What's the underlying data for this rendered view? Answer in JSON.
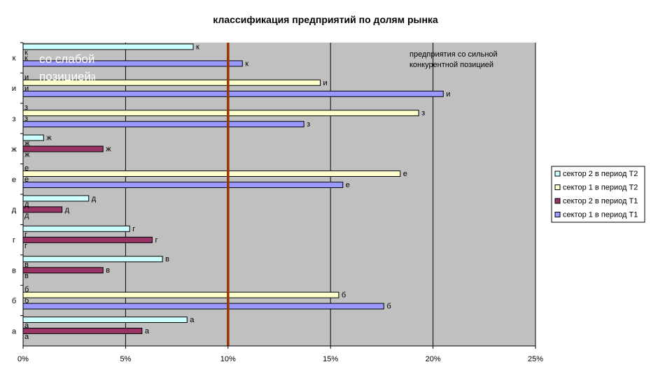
{
  "chart_data": {
    "type": "bar",
    "orientation": "horizontal",
    "title": "классификация предприятий по долям рынка",
    "categories": [
      "а",
      "б",
      "в",
      "г",
      "д",
      "е",
      "ж",
      "з",
      "и",
      "к"
    ],
    "x_ticks": [
      "0%",
      "5%",
      "10%",
      "15%",
      "20%",
      "25%"
    ],
    "xlim": [
      0,
      25
    ],
    "grid": "vertical",
    "legend_position": "right",
    "series": [
      {
        "name": "сектор 2 в период Т2",
        "color": "#CCFFFF",
        "values": [
          8.0,
          null,
          6.8,
          5.2,
          3.2,
          null,
          1.0,
          null,
          null,
          8.3
        ]
      },
      {
        "name": "сектор 1 в период Т2",
        "color": "#FFFFCC",
        "values": [
          null,
          15.4,
          null,
          null,
          null,
          18.4,
          null,
          19.3,
          14.5,
          null
        ]
      },
      {
        "name": "сектор 2 в период Т1",
        "color": "#993366",
        "values": [
          5.8,
          null,
          3.9,
          6.3,
          1.9,
          null,
          3.9,
          null,
          null,
          null
        ]
      },
      {
        "name": "сектор 1 в период Т1",
        "color": "#9999FF",
        "values": [
          null,
          17.6,
          null,
          null,
          null,
          15.6,
          null,
          13.7,
          20.5,
          10.7
        ]
      }
    ],
    "reference_line": {
      "value": 10,
      "color": "#993300"
    },
    "annotations": {
      "strong": [
        "предприятия со сильной",
        "конкурентной позицией"
      ],
      "weak": [
        "со слабой",
        "позицией"
      ],
      "weak_tail": "й"
    },
    "plot_color": "#C0C0C0"
  }
}
